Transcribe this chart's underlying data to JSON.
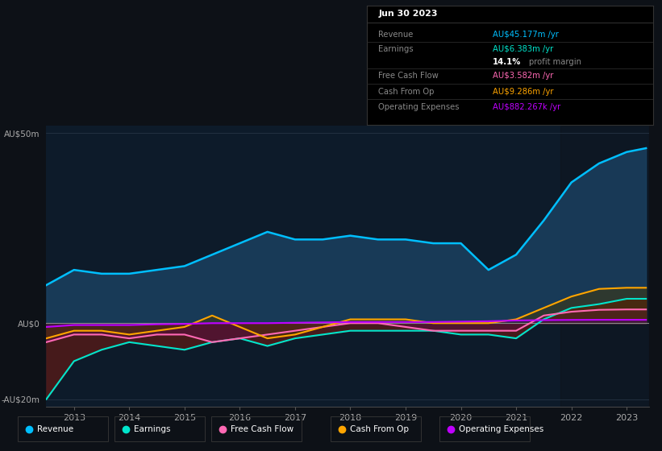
{
  "bg_color": "#0d1117",
  "plot_bg_color": "#0d1b2a",
  "grid_color": "#2a3a4a",
  "zero_line_color": "#888888",
  "years": [
    2012.5,
    2013.0,
    2013.5,
    2014.0,
    2014.5,
    2015.0,
    2015.5,
    2016.0,
    2016.5,
    2017.0,
    2017.5,
    2018.0,
    2018.5,
    2019.0,
    2019.5,
    2020.0,
    2020.5,
    2021.0,
    2021.5,
    2022.0,
    2022.5,
    2023.0,
    2023.35
  ],
  "revenue": [
    10,
    14,
    13,
    13,
    14,
    15,
    18,
    21,
    24,
    22,
    22,
    23,
    22,
    22,
    21,
    21,
    14,
    18,
    27,
    37,
    42,
    45,
    46
  ],
  "earnings": [
    -20,
    -10,
    -7,
    -5,
    -6,
    -7,
    -5,
    -4,
    -6,
    -4,
    -3,
    -2,
    -2,
    -2,
    -2,
    -3,
    -3,
    -4,
    1,
    4,
    5,
    6.4,
    6.4
  ],
  "free_cash_flow": [
    -5,
    -3,
    -3,
    -4,
    -3,
    -3,
    -5,
    -4,
    -3,
    -2,
    -1,
    0,
    0,
    -1,
    -2,
    -2,
    -2,
    -2,
    2,
    3,
    3.5,
    3.6,
    3.6
  ],
  "cash_from_op": [
    -4,
    -2,
    -2,
    -3,
    -2,
    -1,
    2,
    -1,
    -4,
    -3,
    -1,
    1,
    1,
    1,
    0,
    0,
    0,
    1,
    4,
    7,
    9,
    9.3,
    9.3
  ],
  "operating_expenses": [
    -1,
    -0.5,
    -0.5,
    -0.5,
    -0.3,
    -0.2,
    0,
    0,
    0,
    0.1,
    0.2,
    0.3,
    0.3,
    0.3,
    0.3,
    0.4,
    0.5,
    0.7,
    0.8,
    0.85,
    0.88,
    0.88,
    0.88
  ],
  "revenue_color": "#00bfff",
  "earnings_color": "#00e5cc",
  "free_cash_flow_color": "#ff69b4",
  "cash_from_op_color": "#ffa500",
  "operating_expenses_color": "#bf00ff",
  "revenue_fill_color": "#1a4060",
  "earnings_fill_color": "#4d1a1a",
  "ylim": [
    -22,
    52
  ],
  "yticks": [
    -20,
    0,
    50
  ],
  "ytick_labels": [
    "-AU$20m",
    "AU$0",
    "AU$50m"
  ],
  "xticks": [
    2013,
    2014,
    2015,
    2016,
    2017,
    2018,
    2019,
    2020,
    2021,
    2022,
    2023
  ],
  "xlim": [
    2012.5,
    2023.4
  ],
  "info_box": {
    "title": "Jun 30 2023",
    "rows": [
      {
        "label": "Revenue",
        "value": "AU$45.177m /yr",
        "value_color": "#00bfff"
      },
      {
        "label": "Earnings",
        "value": "AU$6.383m /yr",
        "value_color": "#00e5cc"
      },
      {
        "label": "",
        "value": "14.1% profit margin",
        "value_color": "#ffffff",
        "bold_part": "14.1%"
      },
      {
        "label": "Free Cash Flow",
        "value": "AU$3.582m /yr",
        "value_color": "#ff69b4"
      },
      {
        "label": "Cash From Op",
        "value": "AU$9.286m /yr",
        "value_color": "#ffa500"
      },
      {
        "label": "Operating Expenses",
        "value": "AU$882.267k /yr",
        "value_color": "#bf00ff"
      }
    ]
  },
  "legend_items": [
    {
      "label": "Revenue",
      "color": "#00bfff"
    },
    {
      "label": "Earnings",
      "color": "#00e5cc"
    },
    {
      "label": "Free Cash Flow",
      "color": "#ff69b4"
    },
    {
      "label": "Cash From Op",
      "color": "#ffa500"
    },
    {
      "label": "Operating Expenses",
      "color": "#bf00ff"
    }
  ]
}
